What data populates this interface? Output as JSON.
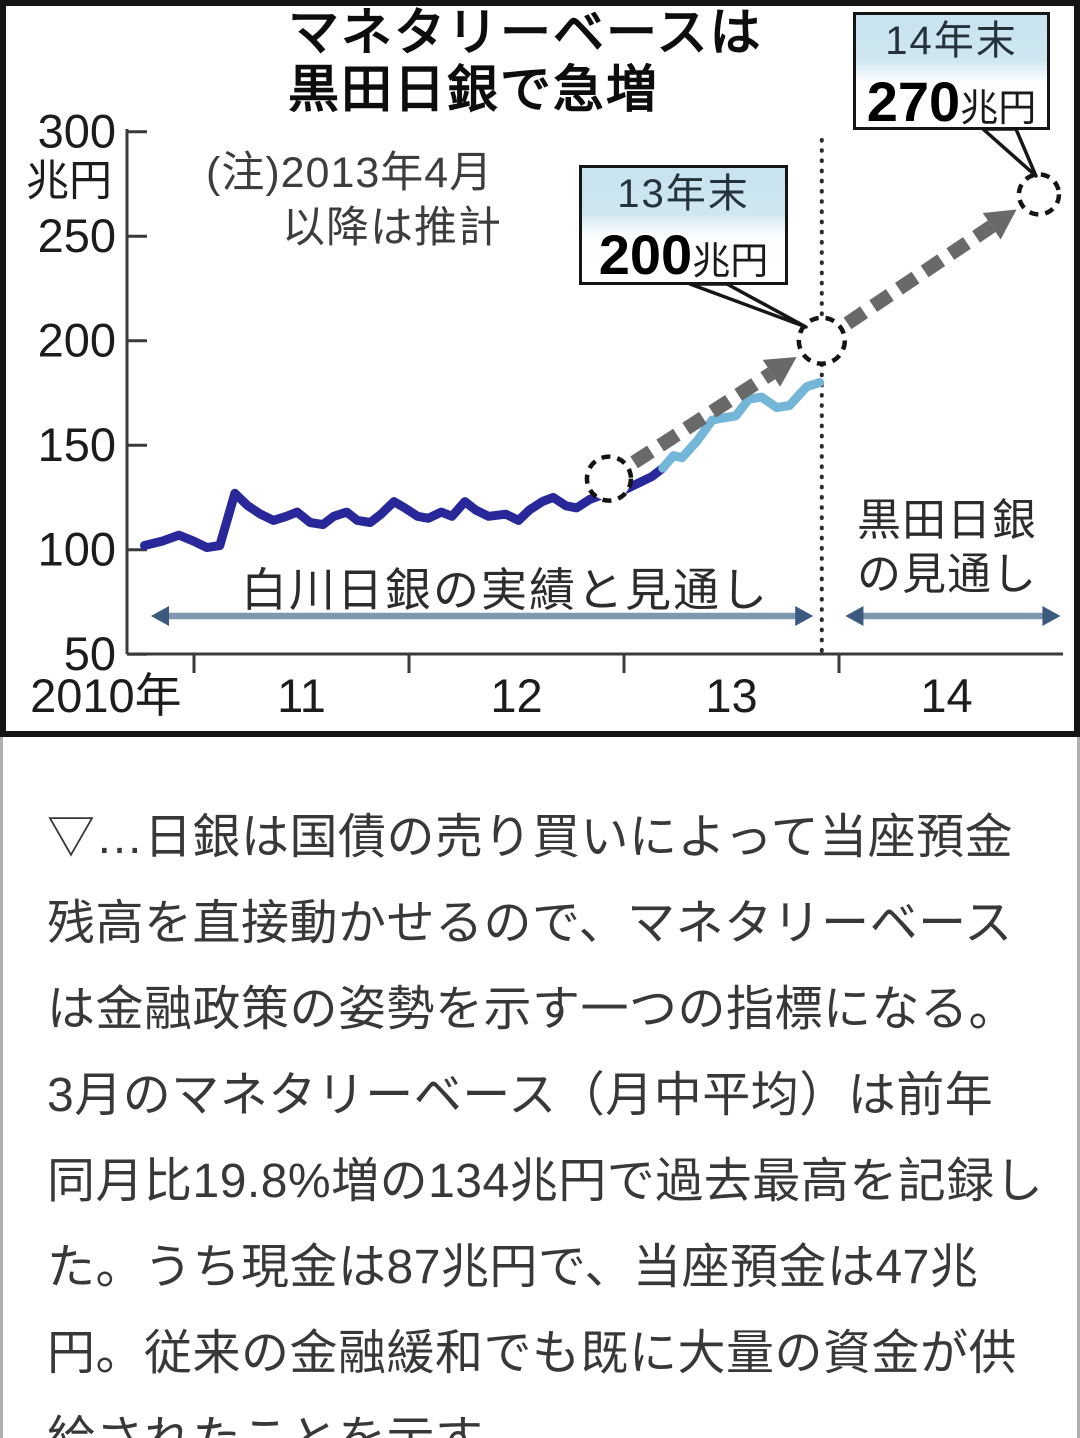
{
  "figure": {
    "title_line1": "マネタリーベースは",
    "title_line2": "黒田日銀で急増",
    "note_line1": "(注)2013年4月",
    "note_line2": "以降は推計",
    "unit_label": "兆円",
    "y_axis_labels": [
      "300",
      "250",
      "200",
      "150",
      "100",
      "50"
    ],
    "x_axis_labels": [
      "2010年",
      "11",
      "12",
      "13",
      "14"
    ],
    "region_labels": {
      "shirakawa": "白川日銀の実績と見通し",
      "kuroda_line1": "黒田日銀",
      "kuroda_line2": "の見通し"
    },
    "callouts": [
      {
        "title": "13年末",
        "value": "200",
        "unit": "兆円"
      },
      {
        "title": "14年末",
        "value": "270",
        "unit": "兆円"
      }
    ]
  },
  "chart_data": {
    "type": "line",
    "title": "マネタリーベースは黒田日銀で急増",
    "note": "(注)2013年4月以降は推計",
    "ylabel": "兆円",
    "ylim": [
      50,
      300
    ],
    "yticks": [
      300,
      250,
      200,
      150,
      100,
      50
    ],
    "xlim": [
      2010.69,
      2015.04
    ],
    "xticks": [
      2011,
      2012,
      2013,
      2014
    ],
    "xtick_labels": [
      {
        "label": "2010年",
        "x": 2010.59
      },
      {
        "label": "11",
        "x": 2011.5
      },
      {
        "label": "12",
        "x": 2012.5
      },
      {
        "label": "13",
        "x": 2013.5
      },
      {
        "label": "14",
        "x": 2014.5
      }
    ],
    "divider_x": 2013.92,
    "grid": false,
    "series": [
      {
        "name": "白川日銀の実績",
        "color": "#28289a",
        "style": "solid",
        "points": [
          [
            2010.77,
            102
          ],
          [
            2010.85,
            104
          ],
          [
            2010.93,
            107
          ],
          [
            2011.0,
            104
          ],
          [
            2011.06,
            101
          ],
          [
            2011.12,
            102
          ],
          [
            2011.19,
            127
          ],
          [
            2011.25,
            121
          ],
          [
            2011.31,
            117
          ],
          [
            2011.37,
            114
          ],
          [
            2011.43,
            116
          ],
          [
            2011.48,
            118
          ],
          [
            2011.54,
            113
          ],
          [
            2011.6,
            112
          ],
          [
            2011.65,
            116
          ],
          [
            2011.71,
            118
          ],
          [
            2011.76,
            114
          ],
          [
            2011.82,
            113
          ],
          [
            2011.87,
            117
          ],
          [
            2011.93,
            123
          ],
          [
            2011.98,
            120
          ],
          [
            2012.04,
            116
          ],
          [
            2012.09,
            115
          ],
          [
            2012.15,
            118
          ],
          [
            2012.2,
            116
          ],
          [
            2012.26,
            123
          ],
          [
            2012.31,
            119
          ],
          [
            2012.37,
            116
          ],
          [
            2012.45,
            117
          ],
          [
            2012.51,
            114
          ],
          [
            2012.56,
            119
          ],
          [
            2012.62,
            123
          ],
          [
            2012.67,
            125
          ],
          [
            2012.73,
            121
          ],
          [
            2012.78,
            120
          ],
          [
            2012.84,
            124
          ],
          [
            2012.89,
            126
          ],
          [
            2012.95,
            131
          ],
          [
            2013.01,
            129
          ],
          [
            2013.07,
            132
          ],
          [
            2013.13,
            135
          ],
          [
            2013.18,
            139
          ]
        ]
      },
      {
        "name": "白川日銀の見通し",
        "color": "#74b6d8",
        "style": "solid",
        "points": [
          [
            2013.18,
            139
          ],
          [
            2013.23,
            145
          ],
          [
            2013.27,
            144
          ],
          [
            2013.34,
            152
          ],
          [
            2013.41,
            162
          ],
          [
            2013.46,
            163
          ],
          [
            2013.52,
            164
          ],
          [
            2013.58,
            172
          ],
          [
            2013.64,
            173
          ],
          [
            2013.71,
            168
          ],
          [
            2013.77,
            169
          ],
          [
            2013.85,
            178
          ],
          [
            2013.91,
            180
          ]
        ]
      },
      {
        "name": "黒田日銀の見通し",
        "color": "#696969",
        "style": "dashed-arrow",
        "points": [
          [
            2012.93,
            134
          ],
          [
            2013.92,
            200
          ],
          [
            2014.93,
            270
          ]
        ]
      }
    ],
    "markers": [
      {
        "x": 2012.93,
        "v": 134,
        "r": 22
      },
      {
        "x": 2013.92,
        "v": 200,
        "r": 23
      },
      {
        "x": 2014.93,
        "v": 270,
        "r": 20
      }
    ],
    "annotations": [
      {
        "text": "13年末 200兆円",
        "x": 2013.92,
        "v": 200
      },
      {
        "text": "14年末 270兆円",
        "x": 2014.93,
        "v": 270
      }
    ],
    "regions": [
      {
        "label": "白川日銀の実績と見通し",
        "x1": 2010.8,
        "x2": 2013.88
      },
      {
        "label": "黒田日銀の見通し",
        "x1": 2014.03,
        "x2": 2015.03
      }
    ],
    "legend_position": "none"
  },
  "article": {
    "lines": [
      "▽…日銀は国債の売り買いによって当座預金",
      "残高を直接動かせるので、マネタリーベース",
      "は金融政策の姿勢を示す一つの指標になる。",
      "3月のマネタリーベース（月中平均）は前年",
      "同月比19.8%増の134兆円で過去最高を記録し",
      "た。うち現金は87兆円で、当座預金は47兆",
      "円。従来の金融緩和でも既に大量の資金が供",
      "給されたことを示す"
    ]
  }
}
